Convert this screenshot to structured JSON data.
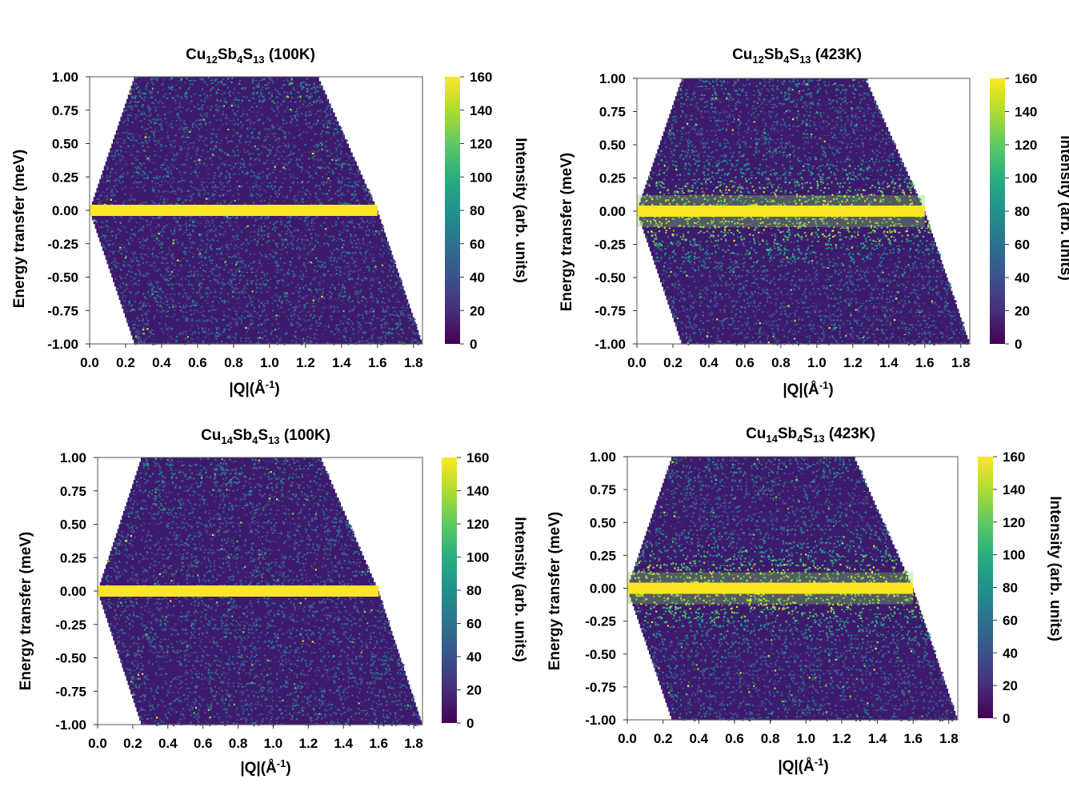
{
  "chart_data": [
    {
      "type": "heatmap",
      "title": {
        "el": "Cu",
        "n1": "12",
        "el2": "Sb",
        "n2": "4",
        "el3": "S",
        "n3": "13",
        "cond": " (100K)"
      },
      "xlabel": {
        "pre": "|Q|(Å",
        "sup": "-1",
        "post": ")"
      },
      "ylabel": "Energy transfer (meV)",
      "colorbar_label": "Intensity (arb. units)",
      "xlim": [
        0.0,
        1.85
      ],
      "ylim": [
        -1.0,
        1.0
      ],
      "x_ticks": [
        "0.0",
        "0.2",
        "0.4",
        "0.6",
        "0.8",
        "1.0",
        "1.2",
        "1.4",
        "1.6",
        "1.8"
      ],
      "y_ticks": [
        "1.00",
        "0.75",
        "0.50",
        "0.25",
        "0.00",
        "-0.25",
        "-0.50",
        "-0.75",
        "-1.00"
      ],
      "colorbar_ticks": [
        "160",
        "140",
        "120",
        "100",
        "80",
        "60",
        "40",
        "20",
        "0"
      ],
      "colorbar_range": [
        0,
        160
      ],
      "colormap": "viridis",
      "elastic_line": {
        "energy": 0.0,
        "q_max": 1.6,
        "quasielastic_width": "narrow"
      },
      "coverage_boundary": {
        "q_min_at_E": [
          [
            1.0,
            0.25
          ],
          [
            0.0,
            0.0
          ],
          [
            -1.0,
            0.25
          ]
        ],
        "q_max_at_E": [
          [
            1.0,
            1.27
          ],
          [
            0.0,
            1.6
          ],
          [
            -1.0,
            1.85
          ]
        ]
      }
    },
    {
      "type": "heatmap",
      "title": {
        "el": "Cu",
        "n1": "12",
        "el2": "Sb",
        "n2": "4",
        "el3": "S",
        "n3": "13",
        "cond": " (423K)"
      },
      "xlabel": {
        "pre": "|Q|(Å",
        "sup": "-1",
        "post": ")"
      },
      "ylabel": "Energy transfer (meV)",
      "colorbar_label": "Intensity (arb. units)",
      "xlim": [
        0.0,
        1.85
      ],
      "ylim": [
        -1.0,
        1.0
      ],
      "x_ticks": [
        "0.0",
        "0.2",
        "0.4",
        "0.6",
        "0.8",
        "1.0",
        "1.2",
        "1.4",
        "1.6",
        "1.8"
      ],
      "y_ticks": [
        "1.00",
        "0.75",
        "0.50",
        "0.25",
        "0.00",
        "-0.25",
        "-0.50",
        "-0.75",
        "-1.00"
      ],
      "colorbar_ticks": [
        "160",
        "140",
        "120",
        "100",
        "80",
        "60",
        "40",
        "20",
        "0"
      ],
      "colorbar_range": [
        0,
        160
      ],
      "colormap": "viridis",
      "elastic_line": {
        "energy": 0.0,
        "q_max": 1.6,
        "quasielastic_width": "broad"
      },
      "coverage_boundary": {
        "q_min_at_E": [
          [
            1.0,
            0.25
          ],
          [
            0.0,
            0.0
          ],
          [
            -1.0,
            0.25
          ]
        ],
        "q_max_at_E": [
          [
            1.0,
            1.27
          ],
          [
            0.0,
            1.6
          ],
          [
            -1.0,
            1.85
          ]
        ]
      }
    },
    {
      "type": "heatmap",
      "title": {
        "el": "Cu",
        "n1": "14",
        "el2": "Sb",
        "n2": "4",
        "el3": "S",
        "n3": "13",
        "cond": " (100K)"
      },
      "xlabel": {
        "pre": "|Q|(Å",
        "sup": "-1",
        "post": ")"
      },
      "ylabel": "Energy transfer (meV)",
      "colorbar_label": "Intensity (arb. units)",
      "xlim": [
        0.0,
        1.85
      ],
      "ylim": [
        -1.0,
        1.0
      ],
      "x_ticks": [
        "0.0",
        "0.2",
        "0.4",
        "0.6",
        "0.8",
        "1.0",
        "1.2",
        "1.4",
        "1.6",
        "1.8"
      ],
      "y_ticks": [
        "1.00",
        "0.75",
        "0.50",
        "0.25",
        "0.00",
        "-0.25",
        "-0.50",
        "-0.75",
        "-1.00"
      ],
      "colorbar_ticks": [
        "160",
        "140",
        "120",
        "100",
        "80",
        "60",
        "40",
        "20",
        "0"
      ],
      "colorbar_range": [
        0,
        160
      ],
      "colormap": "viridis",
      "elastic_line": {
        "energy": 0.0,
        "q_max": 1.6,
        "quasielastic_width": "narrow"
      },
      "coverage_boundary": {
        "q_min_at_E": [
          [
            1.0,
            0.25
          ],
          [
            0.0,
            0.0
          ],
          [
            -1.0,
            0.25
          ]
        ],
        "q_max_at_E": [
          [
            1.0,
            1.27
          ],
          [
            0.0,
            1.6
          ],
          [
            -1.0,
            1.85
          ]
        ]
      }
    },
    {
      "type": "heatmap",
      "title": {
        "el": "Cu",
        "n1": "14",
        "el2": "Sb",
        "n2": "4",
        "el3": "S",
        "n3": "13",
        "cond": " (423K)"
      },
      "xlabel": {
        "pre": "|Q|(Å",
        "sup": "-1",
        "post": ")"
      },
      "ylabel": "Energy transfer (meV)",
      "colorbar_label": "Intensity (arb. units)",
      "xlim": [
        0.0,
        1.85
      ],
      "ylim": [
        -1.0,
        1.0
      ],
      "x_ticks": [
        "0.0",
        "0.2",
        "0.4",
        "0.6",
        "0.8",
        "1.0",
        "1.2",
        "1.4",
        "1.6",
        "1.8"
      ],
      "y_ticks": [
        "1.00",
        "0.75",
        "0.50",
        "0.25",
        "0.00",
        "-0.25",
        "-0.50",
        "-0.75",
        "-1.00"
      ],
      "colorbar_ticks": [
        "160",
        "140",
        "120",
        "100",
        "80",
        "60",
        "40",
        "20",
        "0"
      ],
      "colorbar_range": [
        0,
        160
      ],
      "colormap": "viridis",
      "elastic_line": {
        "energy": 0.0,
        "q_max": 1.6,
        "quasielastic_width": "broad"
      },
      "coverage_boundary": {
        "q_min_at_E": [
          [
            1.0,
            0.25
          ],
          [
            0.0,
            0.0
          ],
          [
            -1.0,
            0.25
          ]
        ],
        "q_max_at_E": [
          [
            1.0,
            1.27
          ],
          [
            0.0,
            1.6
          ],
          [
            -1.0,
            1.85
          ]
        ]
      }
    }
  ]
}
